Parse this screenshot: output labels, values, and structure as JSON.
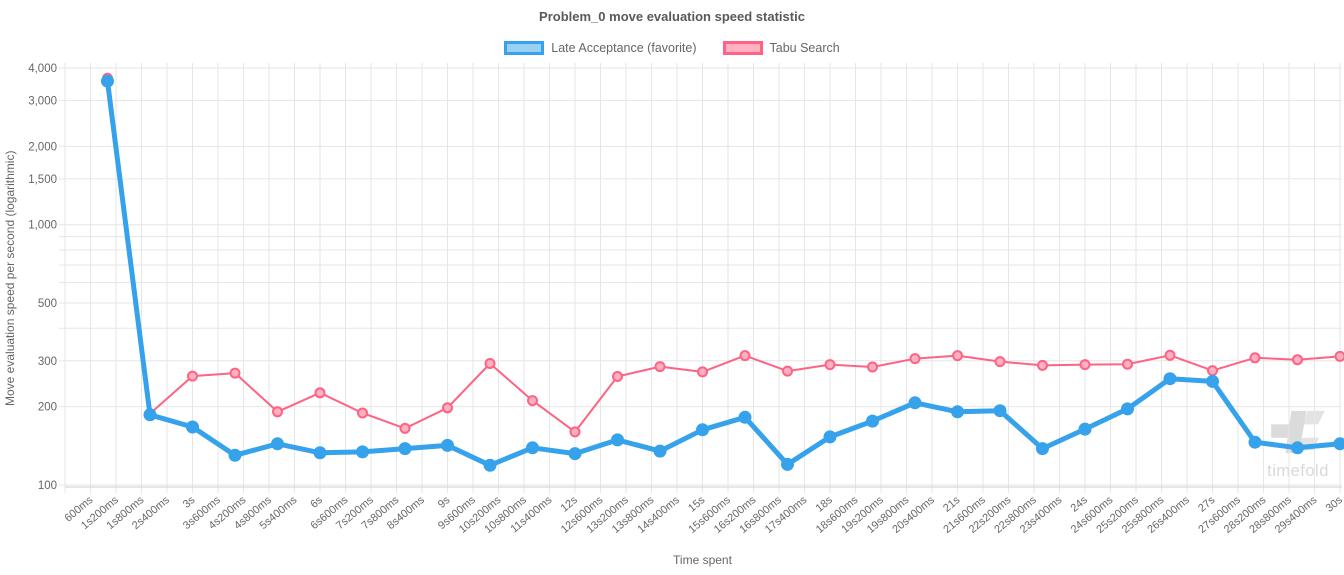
{
  "title": "Problem_0 move evaluation speed statistic",
  "legend": [
    {
      "label": "Late Acceptance (favorite)",
      "color": "#36A2EB",
      "fill": "#9BD0F5"
    },
    {
      "label": "Tabu Search",
      "color": "#FF6384",
      "fill": "#FFB1C1"
    }
  ],
  "watermark": "timefold",
  "axis_colors": {
    "grid": "#e6e6e6",
    "axis_line": "#cfcfcf",
    "tick_text": "#666666"
  },
  "chart_data": {
    "type": "line",
    "title": "Problem_0 move evaluation speed statistic",
    "xlabel": "Time spent",
    "ylabel": "Move evaluation speed per second (logarithmic)",
    "y_scale": "logarithmic",
    "ylim": [
      100,
      4000
    ],
    "grid": "on",
    "legend_position": "top",
    "y_ticks": [
      {
        "value": 100,
        "label": "100"
      },
      {
        "value": 200,
        "label": "200"
      },
      {
        "value": 300,
        "label": "300"
      },
      {
        "value": 500,
        "label": "500"
      },
      {
        "value": 1000,
        "label": "1,000"
      },
      {
        "value": 1500,
        "label": "1,500"
      },
      {
        "value": 2000,
        "label": "2,000"
      },
      {
        "value": 3000,
        "label": "3,000"
      },
      {
        "value": 4000,
        "label": "4,000"
      }
    ],
    "y_gridlines": [
      100,
      200,
      300,
      400,
      500,
      600,
      700,
      800,
      900,
      1000,
      1500,
      2000,
      3000,
      4000
    ],
    "x_tick_labels": [
      "600ms",
      "1s200ms",
      "1s800ms",
      "2s400ms",
      "3s",
      "3s600ms",
      "4s200ms",
      "4s800ms",
      "5s400ms",
      "6s",
      "6s600ms",
      "7s200ms",
      "7s800ms",
      "8s400ms",
      "9s",
      "9s600ms",
      "10s200ms",
      "10s800ms",
      "11s400ms",
      "12s",
      "12s600ms",
      "13s200ms",
      "13s800ms",
      "14s400ms",
      "15s",
      "15s600ms",
      "16s200ms",
      "16s800ms",
      "17s400ms",
      "18s",
      "18s600ms",
      "19s200ms",
      "19s800ms",
      "20s400ms",
      "21s",
      "21s600ms",
      "22s200ms",
      "22s800ms",
      "23s400ms",
      "24s",
      "24s600ms",
      "25s200ms",
      "25s800ms",
      "26s400ms",
      "27s",
      "27s600ms",
      "28s200ms",
      "28s800ms",
      "29s400ms",
      "30s"
    ],
    "x_tick_interval_ms": 600,
    "x_ms": [
      1000,
      2000,
      3000,
      4000,
      5000,
      6000,
      7000,
      8000,
      9000,
      10000,
      11000,
      12000,
      13000,
      14000,
      15000,
      16000,
      17000,
      18000,
      19000,
      20000,
      21000,
      22000,
      23000,
      24000,
      25000,
      26000,
      27000,
      28000,
      29000,
      30000
    ],
    "series": [
      {
        "name": "Late Acceptance (favorite)",
        "color": "#36A2EB",
        "point_fill": "#36A2EB",
        "values": [
          3560,
          186,
          167,
          130,
          144,
          133,
          134,
          138,
          142,
          119,
          139,
          132,
          149,
          135,
          163,
          182,
          120,
          153,
          176,
          207,
          191,
          193,
          138,
          164,
          196,
          256,
          250,
          146,
          139,
          144
        ]
      },
      {
        "name": "Tabu Search",
        "color": "#FF6384",
        "point_fill": "#FFB1C1",
        "values": [
          3650,
          188,
          262,
          269,
          191,
          226,
          189,
          165,
          198,
          293,
          211,
          160,
          261,
          285,
          272,
          314,
          274,
          290,
          284,
          306,
          314,
          298,
          288,
          290,
          291,
          315,
          275,
          308,
          303,
          312
        ]
      }
    ]
  }
}
